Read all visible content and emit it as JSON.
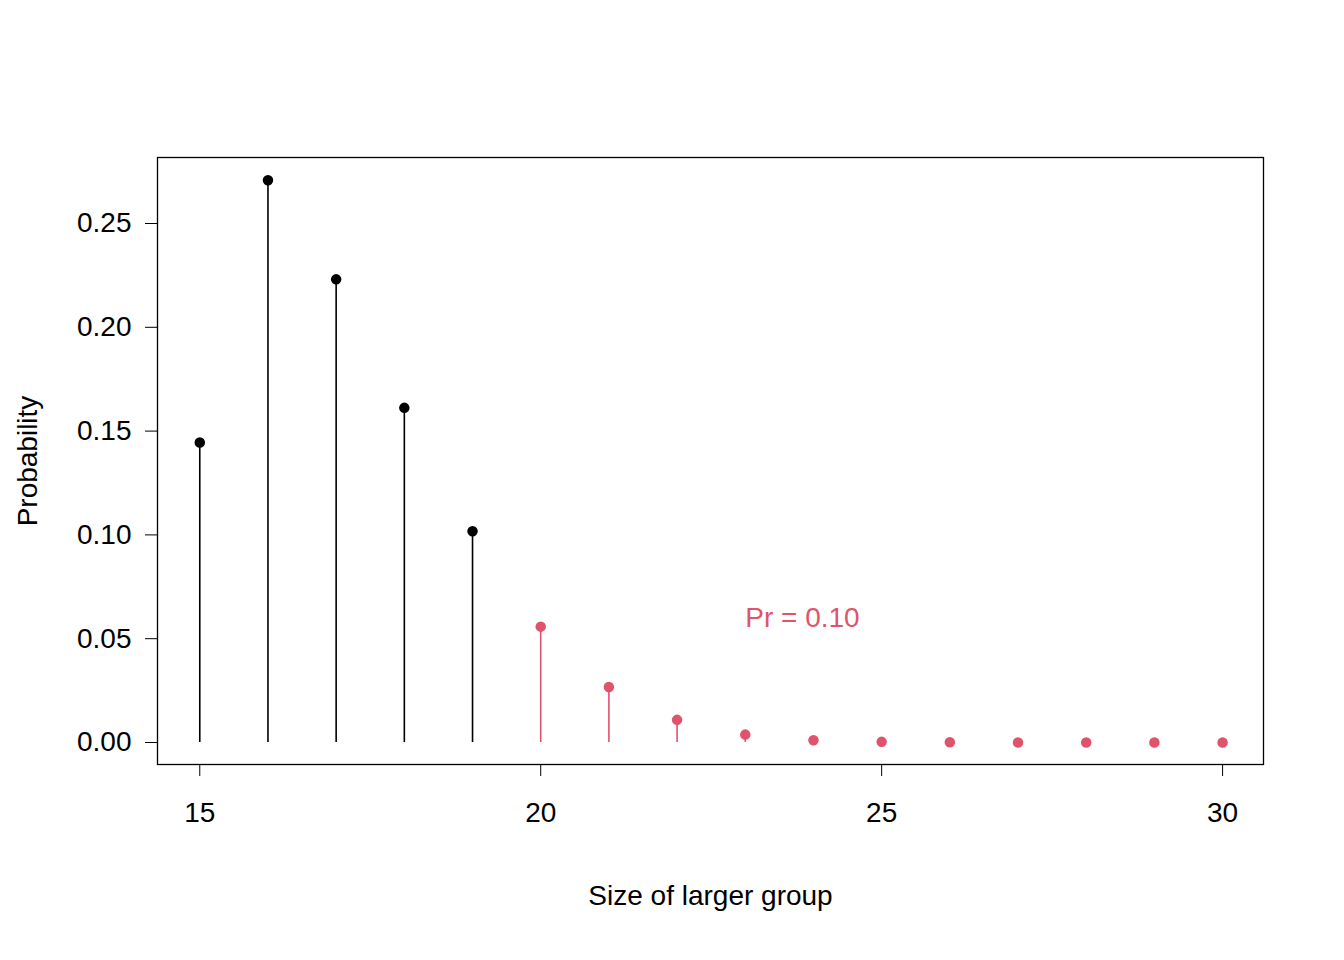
{
  "chart_data": {
    "type": "lollipop",
    "x_label": "Size of larger group",
    "y_label": "Probability",
    "x": [
      15,
      16,
      17,
      18,
      19,
      20,
      21,
      22,
      23,
      24,
      25,
      26,
      27,
      28,
      29,
      30
    ],
    "values": [
      0.1445,
      0.2708,
      0.2231,
      0.1612,
      0.1018,
      0.0558,
      0.0267,
      0.0109,
      0.0038,
      0.0011,
      0.0003,
      0.0001,
      0,
      0,
      0,
      0
    ],
    "colors": [
      "#000000",
      "#000000",
      "#000000",
      "#000000",
      "#000000",
      "#DF536B",
      "#DF536B",
      "#DF536B",
      "#DF536B",
      "#DF536B",
      "#DF536B",
      "#DF536B",
      "#DF536B",
      "#DF536B",
      "#DF536B",
      "#DF536B"
    ],
    "marker": "circle",
    "xlim": [
      14.38,
      30.6
    ],
    "ylim": [
      -0.0106,
      0.2818
    ],
    "xticks": [
      15,
      20,
      25,
      30
    ],
    "yticks": [
      {
        "value": 0,
        "label": "0.00"
      },
      0.05,
      {
        "value": 0.1,
        "label": "0.10"
      },
      0.15,
      {
        "value": 0.2,
        "label": "0.20"
      },
      0.25
    ],
    "annotations": [
      {
        "text": "Pr = 0.10",
        "x": 23,
        "y": 0.06,
        "color": "#DF536B"
      }
    ],
    "grid": false
  }
}
